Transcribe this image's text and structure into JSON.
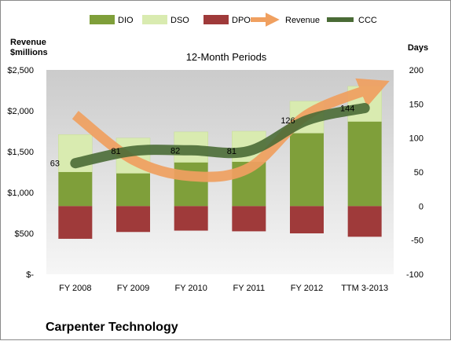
{
  "chart_data": {
    "type": "bar",
    "title": "12-Month Periods",
    "company": "Carpenter Technology",
    "left_axis_label": [
      "Revenue",
      "$millions"
    ],
    "right_axis_label": "Days",
    "categories": [
      "FY 2008",
      "FY 2009",
      "FY 2010",
      "FY 2011",
      "FY 2012",
      "TTM 3-2013"
    ],
    "left_axis": {
      "ylim": [
        0,
        2500
      ],
      "ticks": [
        0,
        500,
        1000,
        1500,
        2000,
        2500
      ],
      "tick_labels": [
        "$-",
        "$500",
        "$1,000",
        "$1,500",
        "$2,000",
        "$2,500"
      ]
    },
    "right_axis": {
      "ylim": [
        -100,
        200
      ],
      "ticks": [
        -100,
        -50,
        0,
        50,
        100,
        150,
        200
      ],
      "tick_labels": [
        "-100",
        "-50",
        "0",
        "50",
        "100",
        "150",
        "200"
      ]
    },
    "series": [
      {
        "name": "DIO",
        "axis": "right",
        "kind": "stacked-bar",
        "color": "#7f9f3a",
        "values": [
          50,
          48,
          64,
          65,
          107,
          124
        ]
      },
      {
        "name": "DSO",
        "axis": "right",
        "kind": "stacked-bar",
        "color": "#d9ebb0",
        "values": [
          55,
          52,
          45,
          45,
          47,
          52
        ]
      },
      {
        "name": "DPO",
        "axis": "right",
        "kind": "negative-bar",
        "color": "#9f3a3a",
        "values": [
          48,
          38,
          36,
          37,
          40,
          45
        ]
      },
      {
        "name": "Revenue",
        "axis": "left",
        "kind": "arrow-line",
        "color": "#f0a060",
        "values": [
          1950,
          1400,
          1200,
          1300,
          1950,
          2280
        ]
      },
      {
        "name": "CCC",
        "axis": "right",
        "kind": "line",
        "color": "#4a6b36",
        "values": [
          63,
          81,
          82,
          81,
          126,
          144
        ],
        "labels": [
          "63",
          "81",
          "82",
          "81",
          "126",
          "144"
        ]
      }
    ],
    "legend_position": "top",
    "grid": false
  }
}
